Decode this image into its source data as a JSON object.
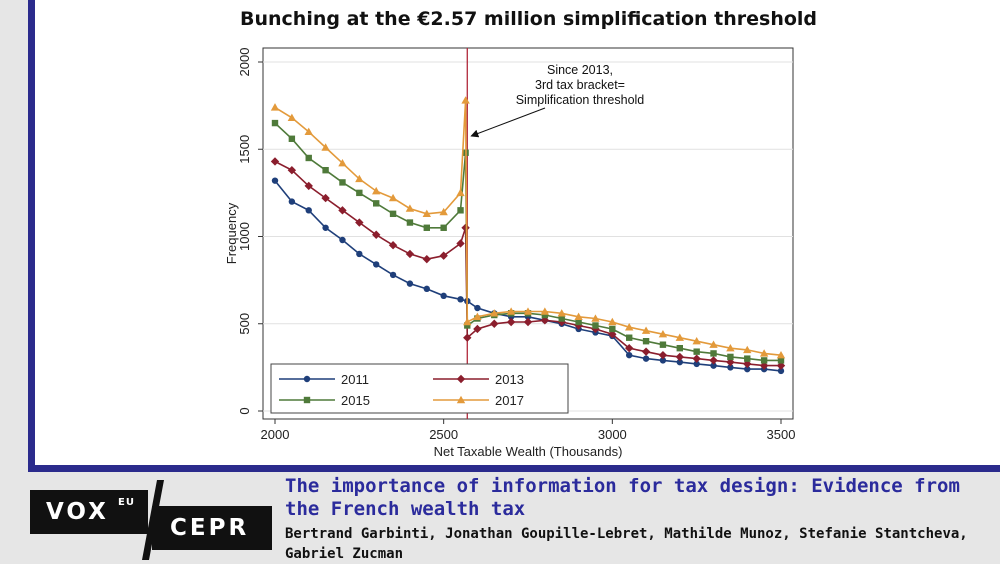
{
  "slide": {
    "title": "Bunching at the €2.57 million simplification threshold"
  },
  "chart_data": {
    "type": "line",
    "title": "Bunching at the €2.57 million simplification threshold",
    "xlabel": "Net Taxable Wealth (Thousands)",
    "ylabel": "Frequency",
    "xlim": [
      2000,
      3500
    ],
    "ylim": [
      0,
      2000
    ],
    "xticks": [
      2000,
      2500,
      3000,
      3500
    ],
    "yticks": [
      0,
      500,
      1000,
      1500,
      2000
    ],
    "threshold_x": 2570,
    "annotation": [
      "Since 2013,",
      "3rd tax bracket=",
      "Simplification threshold"
    ],
    "series": [
      {
        "name": "2011",
        "color": "#1f3f7a",
        "marker": "circle",
        "x": [
          2000,
          2050,
          2100,
          2150,
          2200,
          2250,
          2300,
          2350,
          2400,
          2450,
          2500,
          2550,
          2570,
          2600,
          2650,
          2700,
          2750,
          2800,
          2850,
          2900,
          2950,
          3000,
          3050,
          3100,
          3150,
          3200,
          3250,
          3300,
          3350,
          3400,
          3450,
          3500
        ],
        "y": [
          1320,
          1200,
          1150,
          1050,
          980,
          900,
          840,
          780,
          730,
          700,
          660,
          640,
          630,
          590,
          560,
          540,
          540,
          520,
          500,
          470,
          450,
          430,
          320,
          300,
          290,
          280,
          270,
          260,
          250,
          240,
          240,
          230
        ]
      },
      {
        "name": "2013",
        "color": "#8b1e2d",
        "marker": "diamond",
        "x": [
          2000,
          2050,
          2100,
          2150,
          2200,
          2250,
          2300,
          2350,
          2400,
          2450,
          2500,
          2550,
          2565,
          2570,
          2600,
          2650,
          2700,
          2750,
          2800,
          2850,
          2900,
          2950,
          3000,
          3050,
          3100,
          3150,
          3200,
          3250,
          3300,
          3350,
          3400,
          3450,
          3500
        ],
        "y": [
          1430,
          1380,
          1290,
          1220,
          1150,
          1080,
          1010,
          950,
          900,
          870,
          890,
          960,
          1050,
          420,
          470,
          500,
          510,
          510,
          520,
          510,
          490,
          470,
          440,
          360,
          340,
          320,
          310,
          300,
          290,
          280,
          270,
          260,
          260
        ]
      },
      {
        "name": "2015",
        "color": "#4f7a3a",
        "marker": "square",
        "x": [
          2000,
          2050,
          2100,
          2150,
          2200,
          2250,
          2300,
          2350,
          2400,
          2450,
          2500,
          2550,
          2565,
          2570,
          2600,
          2650,
          2700,
          2750,
          2800,
          2850,
          2900,
          2950,
          3000,
          3050,
          3100,
          3150,
          3200,
          3250,
          3300,
          3350,
          3400,
          3450,
          3500
        ],
        "y": [
          1650,
          1560,
          1450,
          1380,
          1310,
          1250,
          1190,
          1130,
          1080,
          1050,
          1050,
          1150,
          1480,
          490,
          530,
          550,
          560,
          560,
          550,
          530,
          510,
          490,
          470,
          420,
          400,
          380,
          360,
          340,
          330,
          310,
          300,
          290,
          290
        ]
      },
      {
        "name": "2017",
        "color": "#e39a3b",
        "marker": "triangle",
        "x": [
          2000,
          2050,
          2100,
          2150,
          2200,
          2250,
          2300,
          2350,
          2400,
          2450,
          2500,
          2550,
          2565,
          2570,
          2600,
          2650,
          2700,
          2750,
          2800,
          2850,
          2900,
          2950,
          3000,
          3050,
          3100,
          3150,
          3200,
          3250,
          3300,
          3350,
          3400,
          3450,
          3500
        ],
        "y": [
          1740,
          1680,
          1600,
          1510,
          1420,
          1330,
          1260,
          1220,
          1160,
          1130,
          1140,
          1250,
          1780,
          510,
          540,
          560,
          570,
          570,
          570,
          560,
          540,
          530,
          510,
          480,
          460,
          440,
          420,
          400,
          380,
          360,
          350,
          330,
          320
        ]
      }
    ]
  },
  "footer": {
    "brand_vox": "VOX",
    "brand_eu": "EU",
    "brand_cepr": "CEPR",
    "article_title": "The importance of information for tax design: Evidence from the French wealth tax",
    "authors": "Bertrand Garbinti, Jonathan Goupille-Lebret, Mathilde Munoz, Stefanie Stantcheva, Gabriel Zucman"
  }
}
